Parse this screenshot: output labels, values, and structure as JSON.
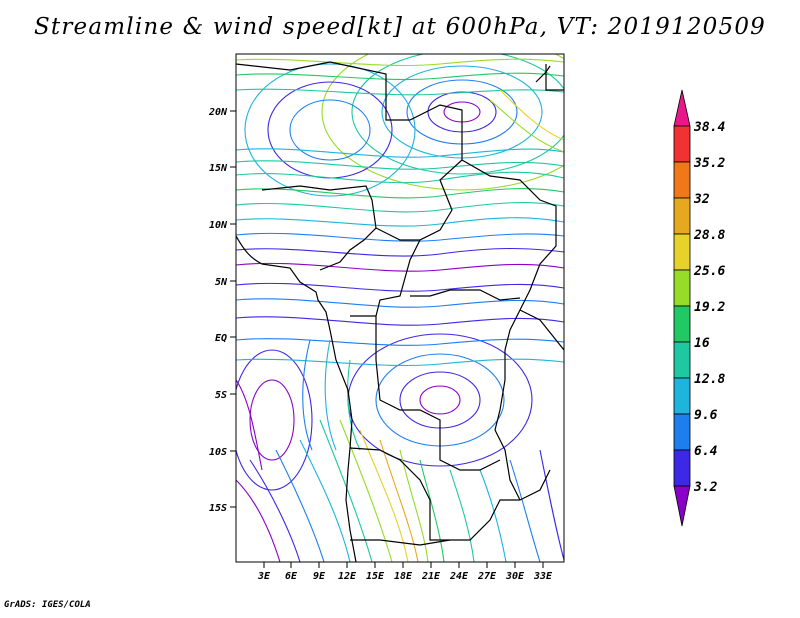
{
  "title": "Streamline & wind speed[kt] at 600hPa, VT: 2019120509",
  "credit": "GrADS: IGES/COLA",
  "map": {
    "lon_labels": [
      "3E",
      "6E",
      "9E",
      "12E",
      "15E",
      "18E",
      "21E",
      "24E",
      "27E",
      "30E",
      "33E"
    ],
    "lat_labels": [
      "20N",
      "15N",
      "10N",
      "5N",
      "EQ",
      "5S",
      "10S",
      "15S"
    ]
  },
  "colorbar": {
    "labels": [
      "3.2",
      "6.4",
      "9.6",
      "12.8",
      "16",
      "19.2",
      "25.6",
      "28.8",
      "32",
      "35.2",
      "38.4"
    ],
    "colors": [
      "#8a00c8",
      "#3c28e6",
      "#1e7ef0",
      "#1eb4dc",
      "#1ec8a0",
      "#22c864",
      "#96dc28",
      "#e6d22a",
      "#e6a81e",
      "#f07818",
      "#f03232",
      "#e8188a"
    ]
  }
}
